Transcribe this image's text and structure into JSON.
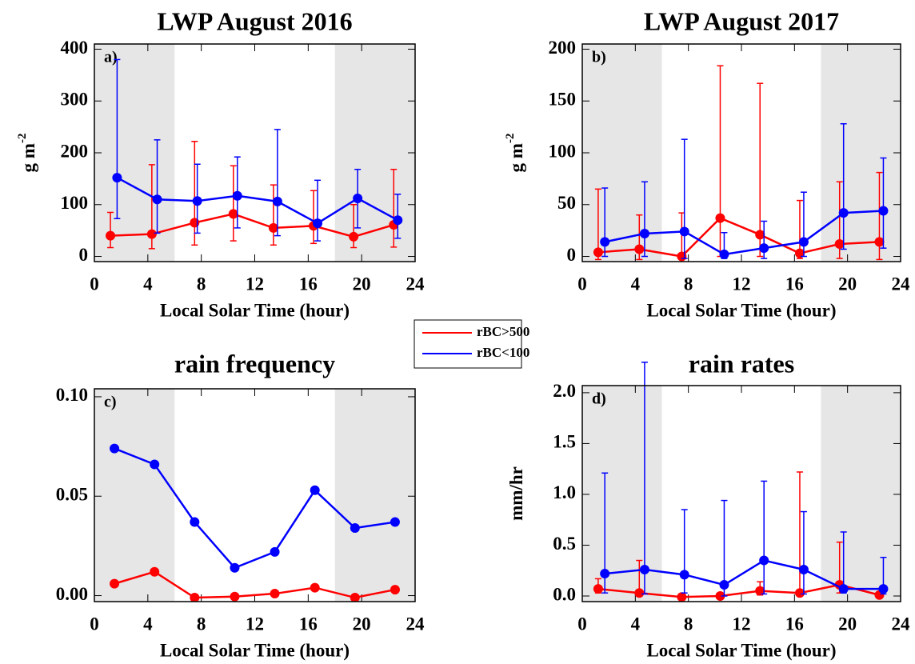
{
  "chart_data": [
    {
      "type": "line",
      "title": "LWP August 2016",
      "panel_label": "a)",
      "ylabel": "g m",
      "ylabel_sup": "-2",
      "xlabel": "Local Solar Time (hour)",
      "xlim": [
        0,
        24
      ],
      "xticks": [
        0,
        4,
        8,
        12,
        16,
        20,
        24
      ],
      "ylim": [
        -10,
        410
      ],
      "yticks": [
        0,
        100,
        200,
        300,
        400
      ],
      "shaded": [
        [
          0,
          6
        ],
        [
          18,
          24
        ]
      ],
      "legend": "center",
      "series": [
        {
          "name": "rBC>500",
          "color": "#ff0000",
          "x": [
            1.2,
            4.3,
            7.5,
            10.4,
            13.4,
            16.4,
            19.4,
            22.4
          ],
          "values": [
            40,
            43,
            65,
            82,
            55,
            59,
            38,
            61
          ],
          "err_low": [
            17,
            15,
            22,
            30,
            22,
            25,
            17,
            18
          ],
          "err_high": [
            85,
            177,
            222,
            175,
            138,
            127,
            100,
            168
          ]
        },
        {
          "name": "rBC<100",
          "color": "#0000ff",
          "x": [
            1.7,
            4.7,
            7.7,
            10.7,
            13.7,
            16.7,
            19.7,
            22.7
          ],
          "values": [
            152,
            110,
            107,
            117,
            106,
            64,
            112,
            70
          ],
          "err_low": [
            73,
            45,
            45,
            55,
            40,
            30,
            55,
            35
          ],
          "err_high": [
            380,
            225,
            178,
            192,
            245,
            147,
            168,
            120
          ]
        }
      ]
    },
    {
      "type": "line",
      "title": "LWP August 2017",
      "panel_label": "b)",
      "ylabel": "g m",
      "ylabel_sup": "-2",
      "xlabel": "Local Solar Time (hour)",
      "xlim": [
        0,
        24
      ],
      "xticks": [
        0,
        4,
        8,
        12,
        16,
        20,
        24
      ],
      "ylim": [
        -5,
        205
      ],
      "yticks": [
        0,
        50,
        100,
        150,
        200
      ],
      "shaded": [
        [
          0,
          6
        ],
        [
          18,
          24
        ]
      ],
      "series": [
        {
          "name": "rBC>500",
          "color": "#ff0000",
          "x": [
            1.2,
            4.3,
            7.5,
            10.4,
            13.4,
            16.4,
            19.4,
            22.4
          ],
          "values": [
            4,
            7,
            0,
            37,
            21,
            3,
            12,
            14
          ],
          "err_low": [
            -3,
            -3,
            -2,
            0,
            0,
            -2,
            -2,
            -3
          ],
          "err_high": [
            65,
            40,
            42,
            184,
            167,
            54,
            72,
            81
          ]
        },
        {
          "name": "rBC<100",
          "color": "#0000ff",
          "x": [
            1.7,
            4.7,
            7.7,
            10.7,
            13.7,
            16.7,
            19.7,
            22.7
          ],
          "values": [
            14,
            22,
            24,
            2,
            8,
            14,
            42,
            44
          ],
          "err_low": [
            0,
            0,
            -2,
            -2,
            -2,
            0,
            7,
            8
          ],
          "err_high": [
            66,
            72,
            113,
            23,
            34,
            62,
            128,
            95
          ]
        }
      ]
    },
    {
      "type": "line",
      "title": "rain frequency",
      "panel_label": "c)",
      "xlabel": "Local Solar Time (hour)",
      "xlim": [
        0,
        24
      ],
      "xticks": [
        0,
        4,
        8,
        12,
        16,
        20,
        24
      ],
      "ylim": [
        -0.003,
        0.104
      ],
      "yticks": [
        {
          "value": 0,
          "label": "0.00"
        },
        {
          "value": 0.05,
          "label": "0.05"
        },
        {
          "value": 0.1,
          "label": "0.10"
        }
      ],
      "shaded": [
        [
          0,
          6
        ],
        [
          18,
          24
        ]
      ],
      "series": [
        {
          "name": "rBC>500",
          "color": "#ff0000",
          "x": [
            1.5,
            4.5,
            7.5,
            10.5,
            13.5,
            16.5,
            19.5,
            22.5
          ],
          "values": [
            0.006,
            0.012,
            -0.001,
            -0.0005,
            0.001,
            0.004,
            -0.001,
            0.003
          ]
        },
        {
          "name": "rBC<100",
          "color": "#0000ff",
          "x": [
            1.5,
            4.5,
            7.5,
            10.5,
            13.5,
            16.5,
            19.5,
            22.5
          ],
          "values": [
            0.074,
            0.066,
            0.037,
            0.014,
            0.022,
            0.053,
            0.034,
            0.037
          ]
        }
      ]
    },
    {
      "type": "line",
      "title": "rain rates",
      "panel_label": "d)",
      "ylabel": "mm/hr",
      "xlabel": "Local Solar Time (hour)",
      "xlim": [
        0,
        24
      ],
      "xticks": [
        0,
        4,
        8,
        12,
        16,
        20,
        24
      ],
      "ylim": [
        -0.055,
        2.07
      ],
      "yticks": [
        {
          "value": 0,
          "label": "0.0"
        },
        {
          "value": 0.5,
          "label": "0.5"
        },
        {
          "value": 1,
          "label": "1.0"
        },
        {
          "value": 1.5,
          "label": "1.5"
        },
        {
          "value": 2,
          "label": "2.0"
        }
      ],
      "shaded": [
        [
          0,
          6
        ],
        [
          18,
          24
        ]
      ],
      "series": [
        {
          "name": "rBC>500",
          "color": "#ff0000",
          "x": [
            1.2,
            4.3,
            7.5,
            10.4,
            13.4,
            16.4,
            19.4,
            22.4
          ],
          "values": [
            0.07,
            0.03,
            -0.01,
            0.0,
            0.05,
            0.03,
            0.11,
            0.01
          ],
          "err_low": [
            0.03,
            0,
            -0.02,
            -0.01,
            0.01,
            0.01,
            0.03,
            0
          ],
          "err_high": [
            0.17,
            0.35,
            0.01,
            0.02,
            0.14,
            1.22,
            0.53,
            0.03
          ]
        },
        {
          "name": "rBC<100",
          "color": "#0000ff",
          "x": [
            1.7,
            4.7,
            7.7,
            10.7,
            13.7,
            16.7,
            19.7,
            22.7
          ],
          "values": [
            0.22,
            0.26,
            0.21,
            0.11,
            0.35,
            0.26,
            0.07,
            0.07
          ],
          "err_low": [
            0.03,
            0.02,
            0.03,
            0,
            0.02,
            0.02,
            0.03,
            0.02
          ],
          "err_high": [
            1.21,
            2.3,
            0.85,
            0.94,
            1.13,
            0.83,
            0.63,
            0.38
          ]
        }
      ]
    }
  ]
}
